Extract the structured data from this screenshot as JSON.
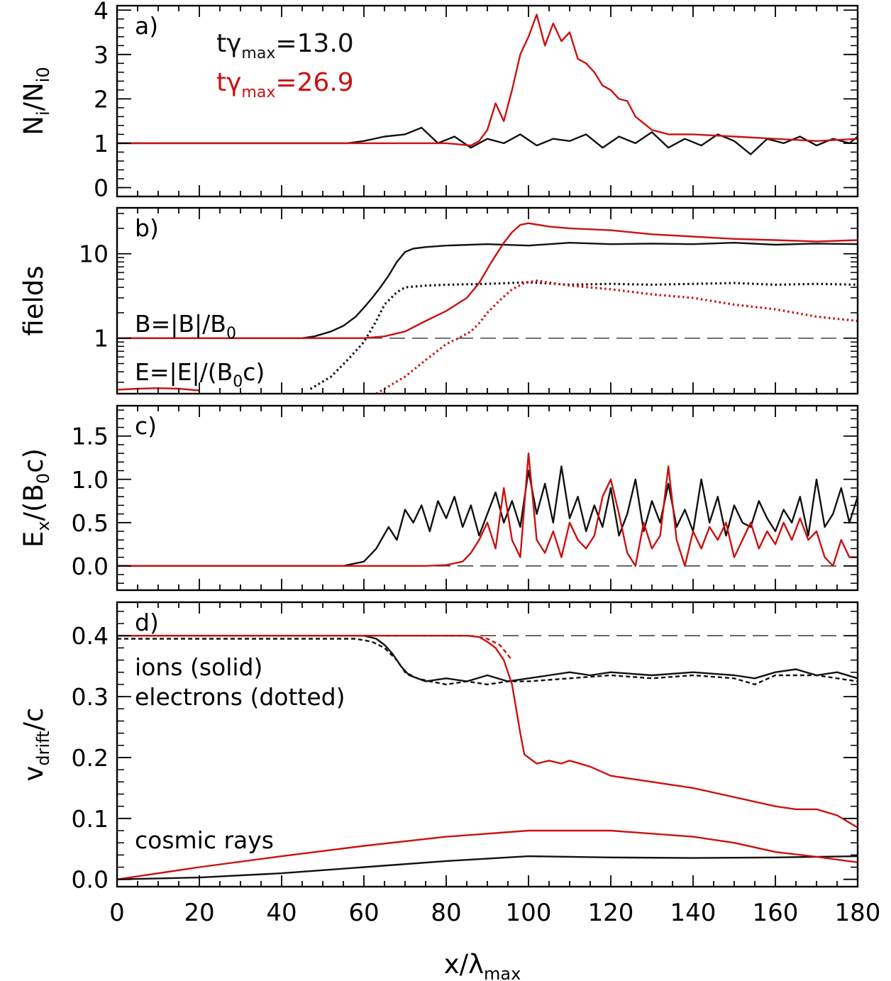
{
  "figure": {
    "xlabel_main": "x/λ",
    "xlabel_sub": "max",
    "xticks": [
      "0",
      "20",
      "40",
      "60",
      "80",
      "100",
      "120",
      "140",
      "160",
      "180"
    ],
    "colors": {
      "black": "#111111",
      "red": "#cc1111",
      "dash": "#444444"
    }
  },
  "chart_data": [
    {
      "id": "a",
      "type": "line",
      "panel_label": "a)",
      "ylabel_main": "N",
      "ylabel_sub": "i",
      "ylabel_mid": "/N",
      "ylabel_sub2": "i0",
      "yticks": [
        "0",
        "1",
        "2",
        "3",
        "4"
      ],
      "ylim": [
        -0.2,
        4.1
      ],
      "xlim": [
        0,
        180
      ],
      "legend": [
        {
          "prefix": "tγ",
          "sub": "max",
          "value": "=13.0",
          "color": "#111111"
        },
        {
          "prefix": "tγ",
          "sub": "max",
          "value": "=26.9",
          "color": "#cc1111"
        }
      ],
      "series": [
        {
          "name": "tγmax=13.0",
          "color": "#111111",
          "x": [
            0,
            56,
            60,
            65,
            70,
            74,
            78,
            82,
            86,
            90,
            94,
            98,
            102,
            106,
            110,
            114,
            118,
            122,
            126,
            130,
            134,
            138,
            142,
            146,
            150,
            154,
            158,
            162,
            166,
            170,
            174,
            178,
            180
          ],
          "y": [
            1.0,
            1.0,
            1.05,
            1.15,
            1.2,
            1.35,
            1.0,
            1.15,
            0.9,
            1.1,
            1.0,
            1.2,
            0.95,
            1.1,
            1.05,
            1.2,
            0.9,
            1.15,
            1.0,
            1.25,
            0.9,
            1.1,
            0.95,
            1.2,
            1.05,
            0.75,
            1.1,
            1.0,
            1.15,
            0.95,
            1.1,
            1.0,
            1.15
          ]
        },
        {
          "name": "tγmax=26.9",
          "color": "#cc1111",
          "x": [
            0,
            80,
            86,
            88,
            90,
            92,
            94,
            96,
            98,
            100,
            102,
            104,
            106,
            108,
            110,
            112,
            114,
            116,
            118,
            120,
            122,
            124,
            126,
            128,
            130,
            134,
            140,
            150,
            160,
            170,
            180
          ],
          "y": [
            1.0,
            1.0,
            0.95,
            1.05,
            1.3,
            1.9,
            1.5,
            2.2,
            3.0,
            3.4,
            3.9,
            3.2,
            3.7,
            3.3,
            3.5,
            2.9,
            2.8,
            2.6,
            2.3,
            2.2,
            2.0,
            1.95,
            1.6,
            1.45,
            1.3,
            1.2,
            1.2,
            1.15,
            1.1,
            1.05,
            1.1
          ]
        }
      ]
    },
    {
      "id": "b",
      "type": "line",
      "yscale": "log",
      "panel_label": "b)",
      "ylabel": "fields",
      "yticks": [
        "1",
        "10"
      ],
      "ylim": [
        0.22,
        35
      ],
      "xlim": [
        0,
        180
      ],
      "reference_line": 1,
      "annotations": [
        {
          "main": "B=|B|/B",
          "sub": "0",
          "tail": ""
        },
        {
          "main": "E=|E|/(B",
          "sub": "0",
          "tail": "c)"
        }
      ],
      "series": [
        {
          "name": "B black",
          "color": "#111111",
          "style": "solid",
          "x": [
            0,
            45,
            48,
            52,
            55,
            58,
            60,
            62,
            64,
            66,
            68,
            70,
            72,
            75,
            80,
            90,
            100,
            110,
            120,
            130,
            140,
            150,
            160,
            170,
            180
          ],
          "y": [
            1.0,
            1.0,
            1.05,
            1.2,
            1.4,
            1.8,
            2.3,
            3.0,
            4.0,
            5.5,
            8.0,
            10.5,
            11.5,
            12.0,
            12.5,
            13.0,
            12.5,
            13.5,
            13.0,
            13.2,
            13.0,
            13.5,
            12.8,
            13.2,
            13.0
          ]
        },
        {
          "name": "B red",
          "color": "#cc1111",
          "style": "solid",
          "x": [
            0,
            50,
            60,
            65,
            70,
            75,
            80,
            85,
            88,
            91,
            94,
            96,
            98,
            100,
            105,
            110,
            120,
            130,
            140,
            150,
            160,
            170,
            180
          ],
          "y": [
            1.0,
            1.0,
            1.0,
            1.05,
            1.2,
            1.6,
            2.1,
            3.0,
            4.5,
            8.0,
            13.5,
            18.0,
            22.0,
            23.0,
            21.0,
            20.0,
            19.0,
            17.0,
            16.0,
            15.0,
            14.5,
            14.0,
            14.5
          ]
        },
        {
          "name": "E black",
          "color": "#111111",
          "style": "dotted",
          "x": [
            47,
            52,
            56,
            60,
            63,
            65,
            68,
            70,
            75,
            80,
            90,
            100,
            110,
            120,
            130,
            140,
            150,
            160,
            170,
            180
          ],
          "y": [
            0.25,
            0.35,
            0.55,
            0.9,
            1.6,
            2.5,
            3.5,
            4.0,
            4.2,
            4.3,
            4.4,
            4.6,
            4.3,
            4.4,
            4.3,
            4.4,
            4.5,
            4.3,
            4.4,
            4.3
          ]
        },
        {
          "name": "E red",
          "color": "#cc1111",
          "style": "dotted",
          "x": [
            63,
            70,
            75,
            80,
            83,
            86,
            88,
            90,
            93,
            96,
            99,
            102,
            110,
            120,
            130,
            140,
            150,
            160,
            170,
            180
          ],
          "y": [
            0.22,
            0.35,
            0.55,
            0.85,
            1.0,
            1.2,
            1.5,
            2.0,
            2.8,
            3.8,
            4.5,
            4.8,
            4.2,
            3.8,
            3.3,
            3.0,
            2.5,
            2.2,
            1.8,
            1.6
          ]
        },
        {
          "name": "E red early",
          "color": "#cc1111",
          "style": "solid",
          "x": [
            0,
            5,
            10,
            15,
            20
          ],
          "y": [
            0.245,
            0.252,
            0.256,
            0.252,
            0.24
          ]
        }
      ]
    },
    {
      "id": "c",
      "type": "line",
      "panel_label": "c)",
      "ylabel_main": "E",
      "ylabel_sub": "x",
      "ylabel_mid": "/(B",
      "ylabel_sub2": "0",
      "ylabel_tail": "c)",
      "yticks": [
        "0.0",
        "0.5",
        "1.0",
        "1.5"
      ],
      "ylim": [
        -0.28,
        1.85
      ],
      "xlim": [
        0,
        180
      ],
      "reference_line": 0,
      "series": [
        {
          "name": "tγmax=13.0",
          "color": "#111111",
          "x": [
            0,
            55,
            60,
            63,
            66,
            68,
            70,
            72,
            74,
            76,
            78,
            80,
            82,
            84,
            86,
            88,
            90,
            92,
            94,
            96,
            98,
            100,
            102,
            104,
            106,
            108,
            110,
            112,
            114,
            116,
            118,
            120,
            122,
            124,
            126,
            128,
            130,
            132,
            134,
            136,
            138,
            140,
            142,
            144,
            146,
            148,
            150,
            152,
            154,
            156,
            158,
            160,
            162,
            164,
            166,
            168,
            170,
            172,
            174,
            176,
            178,
            180
          ],
          "y": [
            0.0,
            0.0,
            0.05,
            0.2,
            0.45,
            0.3,
            0.65,
            0.5,
            0.7,
            0.4,
            0.75,
            0.55,
            0.8,
            0.45,
            0.7,
            0.35,
            0.6,
            0.85,
            0.5,
            0.75,
            0.45,
            1.1,
            0.6,
            0.95,
            0.5,
            1.15,
            0.55,
            0.8,
            0.4,
            0.7,
            0.45,
            0.9,
            0.35,
            0.6,
            1.0,
            0.4,
            0.75,
            0.5,
            0.95,
            0.45,
            0.65,
            0.4,
            1.0,
            0.5,
            0.8,
            0.35,
            0.7,
            0.5,
            0.45,
            0.75,
            0.55,
            0.4,
            0.65,
            0.5,
            0.8,
            0.35,
            1.0,
            0.45,
            0.6,
            0.9,
            0.5,
            0.8
          ]
        },
        {
          "name": "tγmax=26.9",
          "color": "#cc1111",
          "x": [
            0,
            75,
            80,
            84,
            86,
            88,
            90,
            92,
            94,
            96,
            98,
            100,
            102,
            104,
            106,
            108,
            110,
            112,
            114,
            116,
            118,
            120,
            122,
            124,
            126,
            128,
            130,
            132,
            134,
            136,
            138,
            140,
            142,
            144,
            146,
            148,
            150,
            152,
            154,
            156,
            158,
            160,
            162,
            164,
            166,
            168,
            170,
            172,
            174,
            176,
            178,
            180
          ],
          "y": [
            0.0,
            0.0,
            0.01,
            0.05,
            0.15,
            0.3,
            0.5,
            0.2,
            0.9,
            0.3,
            0.1,
            1.3,
            0.3,
            0.15,
            0.4,
            0.1,
            0.5,
            0.3,
            0.2,
            0.35,
            0.8,
            1.0,
            0.6,
            0.15,
            0.0,
            0.5,
            0.2,
            0.35,
            1.15,
            0.3,
            0.0,
            0.4,
            0.2,
            0.45,
            0.3,
            0.5,
            0.1,
            0.3,
            0.5,
            0.2,
            0.4,
            0.25,
            0.5,
            0.3,
            0.55,
            0.3,
            0.4,
            0.1,
            0.0,
            0.3,
            0.1,
            0.1
          ]
        }
      ]
    },
    {
      "id": "d",
      "type": "line",
      "panel_label": "d)",
      "ylabel_main": "v",
      "ylabel_sub": "drift",
      "ylabel_tail": "/c",
      "yticks": [
        "0.0",
        "0.1",
        "0.2",
        "0.3",
        "0.4"
      ],
      "ylim": [
        -0.012,
        0.455
      ],
      "xlim": [
        0,
        180
      ],
      "reference_line": 0.4,
      "annotations": [
        "ions (solid)",
        "electrons (dotted)",
        "cosmic rays"
      ],
      "series": [
        {
          "name": "ions black",
          "color": "#111111",
          "style": "solid",
          "x": [
            0,
            60,
            63,
            65,
            67,
            69,
            71,
            73,
            75,
            80,
            85,
            90,
            95,
            100,
            105,
            110,
            115,
            120,
            130,
            140,
            150,
            155,
            160,
            165,
            170,
            175,
            180
          ],
          "y": [
            0.4,
            0.4,
            0.395,
            0.385,
            0.37,
            0.35,
            0.335,
            0.33,
            0.325,
            0.33,
            0.325,
            0.335,
            0.325,
            0.33,
            0.335,
            0.34,
            0.335,
            0.34,
            0.335,
            0.34,
            0.335,
            0.33,
            0.34,
            0.345,
            0.335,
            0.34,
            0.33
          ]
        },
        {
          "name": "electrons black",
          "color": "#111111",
          "style": "dashed",
          "x": [
            0,
            58,
            62,
            65,
            68,
            70,
            73,
            76,
            80,
            85,
            90,
            95,
            100,
            110,
            120,
            130,
            140,
            150,
            155,
            160,
            170,
            180
          ],
          "y": [
            0.395,
            0.395,
            0.39,
            0.38,
            0.36,
            0.34,
            0.33,
            0.325,
            0.32,
            0.325,
            0.32,
            0.325,
            0.325,
            0.33,
            0.335,
            0.33,
            0.335,
            0.33,
            0.32,
            0.335,
            0.335,
            0.325
          ]
        },
        {
          "name": "ions red",
          "color": "#cc1111",
          "style": "solid",
          "x": [
            0,
            80,
            85,
            88,
            90,
            92,
            94,
            96,
            97,
            98,
            99,
            100,
            102,
            105,
            108,
            110,
            115,
            120,
            130,
            140,
            150,
            160,
            165,
            170,
            175,
            180
          ],
          "y": [
            0.4,
            0.4,
            0.4,
            0.398,
            0.39,
            0.38,
            0.36,
            0.32,
            0.28,
            0.24,
            0.205,
            0.2,
            0.19,
            0.195,
            0.19,
            0.195,
            0.185,
            0.17,
            0.16,
            0.15,
            0.135,
            0.12,
            0.115,
            0.115,
            0.105,
            0.085
          ]
        },
        {
          "name": "electrons red",
          "color": "#cc1111",
          "style": "dashed",
          "x": [
            0,
            80,
            86,
            90,
            93,
            96
          ],
          "y": [
            0.4,
            0.4,
            0.4,
            0.395,
            0.385,
            0.36
          ]
        },
        {
          "name": "cosmic rays black",
          "color": "#111111",
          "style": "solid",
          "x": [
            0,
            20,
            40,
            60,
            80,
            100,
            120,
            140,
            160,
            170,
            180
          ],
          "y": [
            0.0,
            0.003,
            0.01,
            0.02,
            0.03,
            0.038,
            0.036,
            0.035,
            0.036,
            0.037,
            0.038
          ]
        },
        {
          "name": "cosmic rays red",
          "color": "#cc1111",
          "style": "solid",
          "x": [
            0,
            20,
            40,
            60,
            80,
            100,
            120,
            140,
            150,
            160,
            170,
            180
          ],
          "y": [
            0.0,
            0.02,
            0.038,
            0.055,
            0.07,
            0.08,
            0.08,
            0.07,
            0.06,
            0.045,
            0.037,
            0.028
          ]
        }
      ]
    }
  ]
}
